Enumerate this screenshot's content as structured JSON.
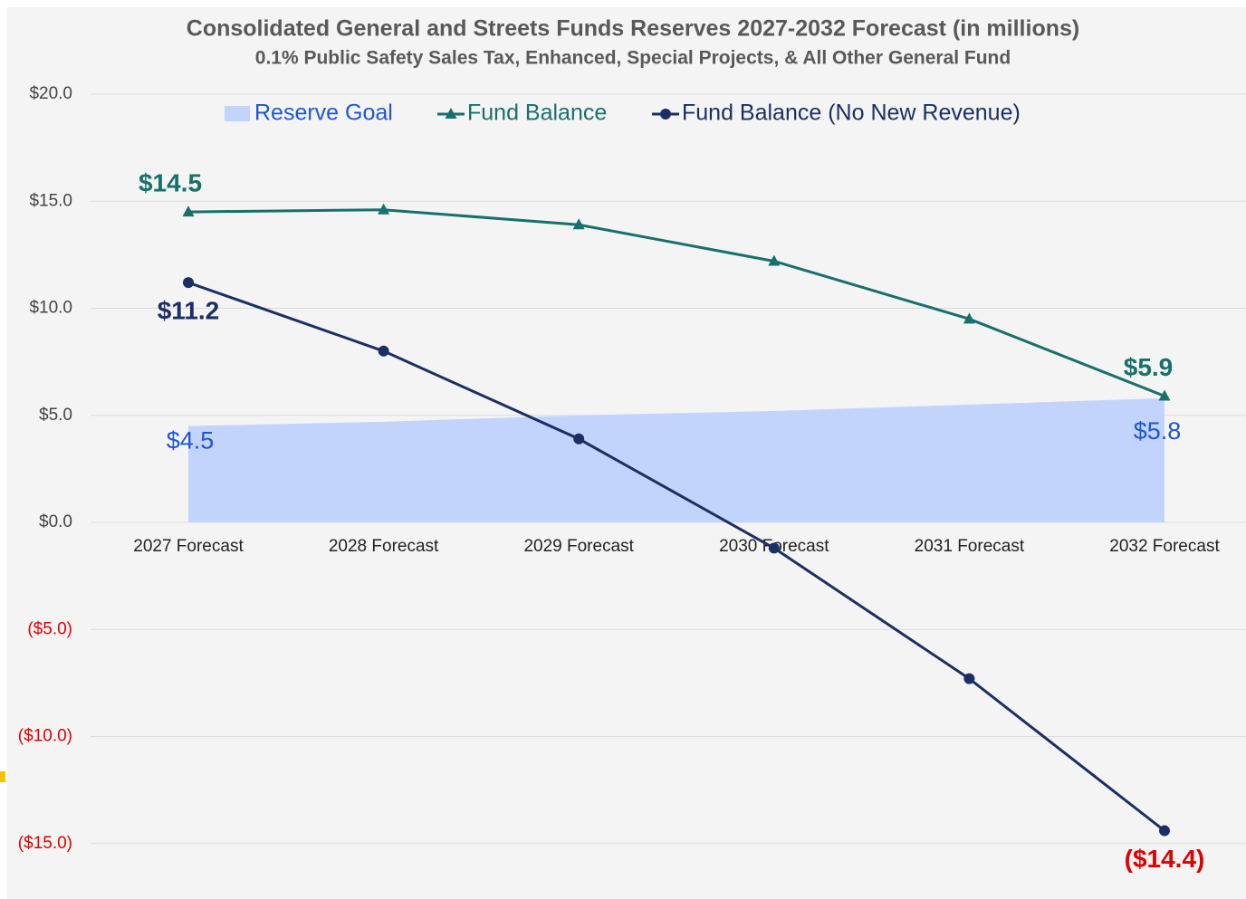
{
  "chart_data": {
    "type": "line",
    "title": "Consolidated General and Streets Funds Reserves 2027-2032 Forecast (in millions)",
    "subtitle": "0.1% Public Safety Sales Tax, Enhanced, Special Projects, & All Other General Fund",
    "categories": [
      "2027 Forecast",
      "2028 Forecast",
      "2029 Forecast",
      "2030 Forecast",
      "2031 Forecast",
      "2032 Forecast"
    ],
    "series": [
      {
        "name": "Reserve Goal",
        "style": "area",
        "color": "#c2d4fb",
        "label_color": "#1f55d6",
        "values": [
          4.5,
          4.7,
          5.0,
          5.2,
          5.5,
          5.8
        ],
        "value_labels": [
          "$4.5",
          null,
          null,
          null,
          null,
          "$5.8"
        ]
      },
      {
        "name": "Fund Balance",
        "style": "line",
        "marker": "triangle",
        "color": "#17706a",
        "label_color": "#17706a",
        "values": [
          14.5,
          14.6,
          13.9,
          12.2,
          9.5,
          5.9
        ],
        "value_labels": [
          "$14.5",
          null,
          null,
          null,
          null,
          "$5.9"
        ]
      },
      {
        "name": "Fund Balance (No New Revenue)",
        "style": "line",
        "marker": "circle",
        "color": "#1c2f63",
        "label_color": "#1c2f63",
        "values": [
          11.2,
          8.0,
          3.9,
          -1.2,
          -7.3,
          -14.4
        ],
        "value_labels": [
          "$11.2",
          null,
          null,
          null,
          null,
          "($14.4)"
        ]
      }
    ],
    "ylim": [
      -17.5,
      20
    ],
    "yticks": [
      {
        "value": -15,
        "label": "($15.0)"
      },
      {
        "value": -10,
        "label": "($10.0)"
      },
      {
        "value": -5,
        "label": "($5.0)"
      },
      {
        "value": 0,
        "label": "$0.0"
      },
      {
        "value": 5,
        "label": "$5.0"
      },
      {
        "value": 10,
        "label": "$10.0"
      },
      {
        "value": 15,
        "label": "$15.0"
      },
      {
        "value": 20,
        "label": "$20.0"
      }
    ],
    "negative_color": "#e00000",
    "grid": true,
    "legend": "top"
  }
}
